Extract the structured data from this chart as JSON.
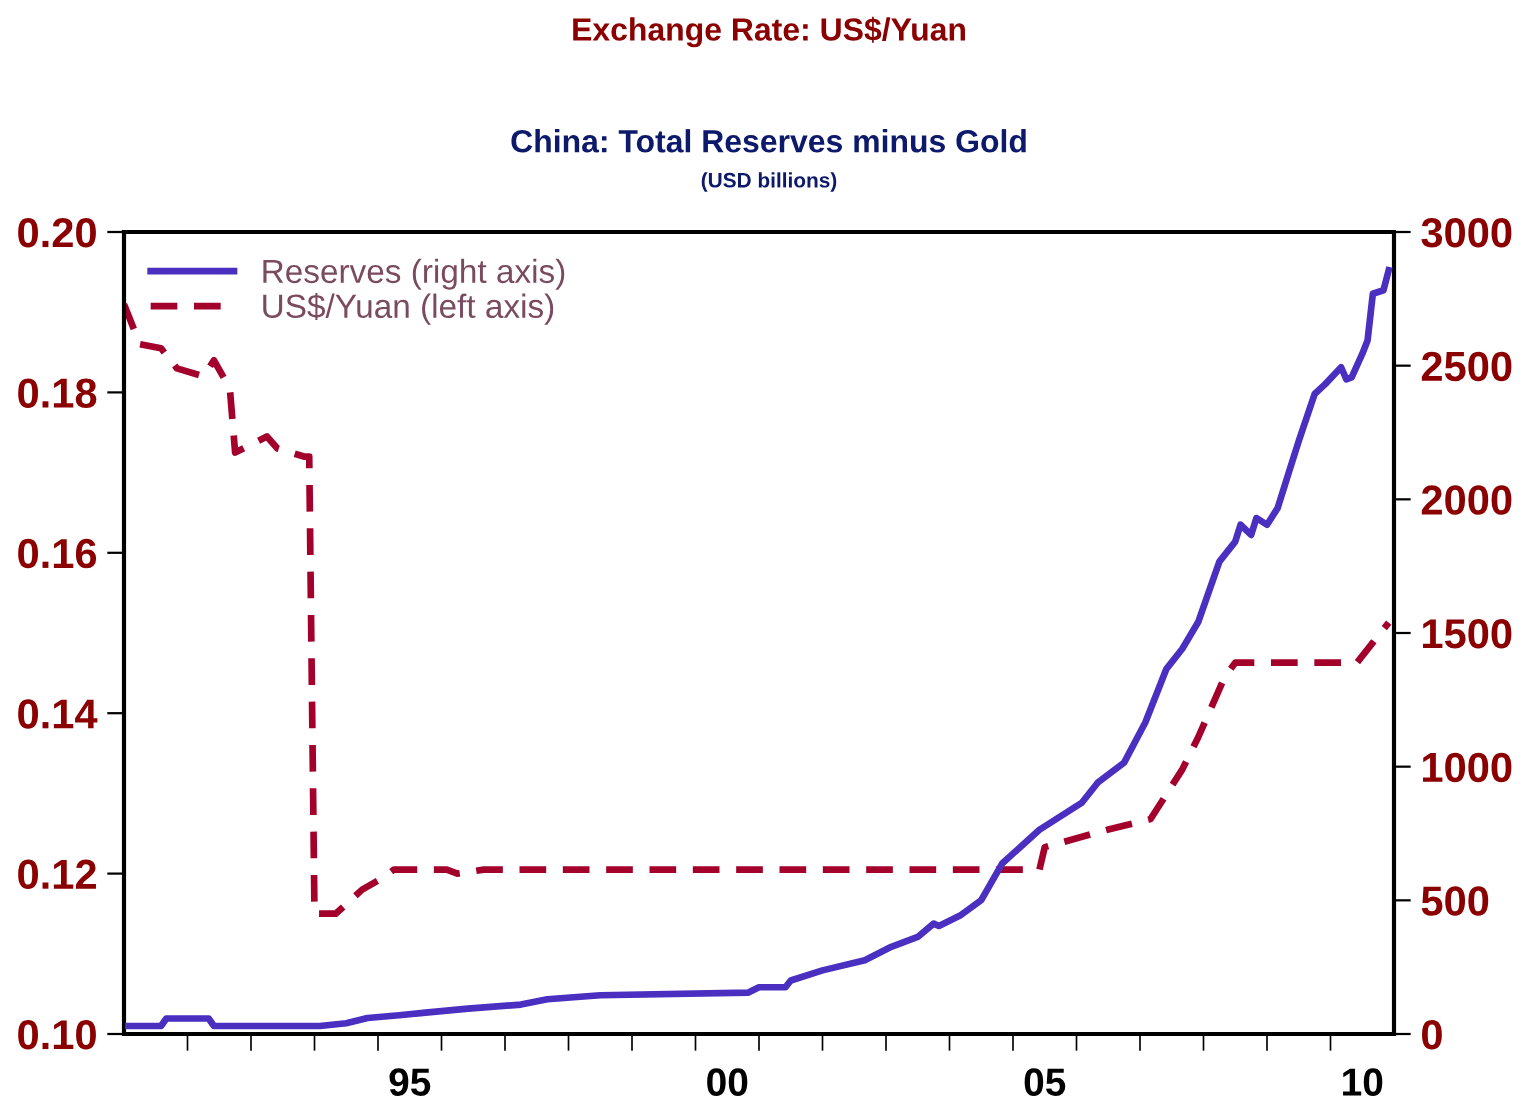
{
  "chart_data": {
    "type": "line",
    "title": "China: Total Reserves minus Gold",
    "subtitle": "(USD billions)",
    "annotations": [
      "Exchange Rate: US$/Yuan"
    ],
    "xlim": [
      "1991-01-01",
      "2011-01-01"
    ],
    "xticks": [
      {
        "value": "1992-01",
        "label": null
      },
      {
        "value": "1993-01",
        "label": null
      },
      {
        "value": "1994-01",
        "label": null
      },
      {
        "value": "1995-01",
        "label": null
      },
      {
        "value": "1996-01",
        "label": null
      },
      {
        "value": "1997-01",
        "label": null
      },
      {
        "value": "1998-01",
        "label": null
      },
      {
        "value": "1999-01",
        "label": null
      },
      {
        "value": "2000-01",
        "label": null
      },
      {
        "value": "2001-01",
        "label": null
      },
      {
        "value": "2002-01",
        "label": null
      },
      {
        "value": "2003-01",
        "label": null
      },
      {
        "value": "2004-01",
        "label": null
      },
      {
        "value": "2005-01",
        "label": null
      },
      {
        "value": "2006-01",
        "label": null
      },
      {
        "value": "2007-01",
        "label": null
      },
      {
        "value": "2008-01",
        "label": null
      },
      {
        "value": "2009-01",
        "label": null
      },
      {
        "value": "2010-01",
        "label": null
      },
      {
        "value": "1995-07",
        "label": "95"
      },
      {
        "value": "2000-07",
        "label": "00"
      },
      {
        "value": "2005-07",
        "label": "05"
      },
      {
        "value": "2010-07",
        "label": "10"
      }
    ],
    "ylim": [
      0.1,
      0.2
    ],
    "yticks": [
      {
        "value": 0.1,
        "label": "0.10"
      },
      {
        "value": 0.12,
        "label": "0.12"
      },
      {
        "value": 0.14,
        "label": "0.14"
      },
      {
        "value": 0.16,
        "label": "0.16"
      },
      {
        "value": 0.18,
        "label": "0.18"
      },
      {
        "value": 0.2,
        "label": "0.20"
      }
    ],
    "y2lim": [
      0,
      3000
    ],
    "y2ticks": [
      0,
      500,
      1000,
      1500,
      2000,
      2500,
      3000
    ],
    "legend": "top left",
    "series": [
      {
        "name": "Reserves (right axis)",
        "color": "#4a2fc0",
        "axis": "y2",
        "line_style": "solid",
        "x": [
          "1991-01",
          "1991-08",
          "1991-09",
          "1992-05",
          "1992-06",
          "1994-02",
          "1994-07",
          "1994-11",
          "1995-05",
          "1995-10",
          "1996-06",
          "1997-04",
          "1997-09",
          "1998-07",
          "2000-11",
          "2001-01",
          "2001-06",
          "2001-07",
          "2002-01",
          "2002-09",
          "2003-02",
          "2003-07",
          "2003-10",
          "2003-11",
          "2004-03",
          "2004-07",
          "2004-11",
          "2005-06",
          "2006-02",
          "2006-05",
          "2006-10",
          "2007-02",
          "2007-06",
          "2007-09",
          "2007-12",
          "2008-04",
          "2008-07",
          "2008-08",
          "2008-10",
          "2008-11",
          "2009-01",
          "2009-03",
          "2009-05",
          "2009-07",
          "2009-10",
          "2009-12",
          "2010-03",
          "2010-04",
          "2010-05",
          "2010-07",
          "2010-08",
          "2010-09",
          "2010-11",
          "2010-12"
        ],
        "values": [
          30,
          30,
          58,
          58,
          30,
          30,
          40,
          60,
          70,
          80,
          95,
          110,
          130,
          145,
          155,
          175,
          175,
          200,
          238,
          276,
          326,
          363,
          413,
          404,
          443,
          501,
          639,
          764,
          865,
          940,
          1015,
          1165,
          1366,
          1441,
          1541,
          1767,
          1842,
          1905,
          1867,
          1930,
          1905,
          1967,
          2093,
          2218,
          2394,
          2431,
          2494,
          2449,
          2456,
          2544,
          2594,
          2769,
          2782,
          2857
        ]
      },
      {
        "name": "US$/Yuan (left axis)",
        "color": "#a3002b",
        "axis": "y",
        "line_style": "dashed",
        "x": [
          "1991-01",
          "1991-04",
          "1991-08",
          "1991-11",
          "1992-04",
          "1992-06",
          "1992-09",
          "1992-10",
          "1993-01",
          "1993-04",
          "1993-06",
          "1993-11",
          "1993-12",
          "1994-01",
          "1994-05",
          "1994-10",
          "1995-02",
          "1995-04",
          "1996-02",
          "1996-04",
          "1996-09",
          "2005-06",
          "2005-07",
          "2006-07",
          "2007-03",
          "2007-09",
          "2007-12",
          "2008-05",
          "2008-07",
          "2009-03",
          "2010-06",
          "2010-09",
          "2010-12"
        ],
        "values": [
          0.191,
          0.186,
          0.1855,
          0.183,
          0.182,
          0.184,
          0.1805,
          0.1725,
          0.1735,
          0.1745,
          0.173,
          0.172,
          0.172,
          0.115,
          0.115,
          0.118,
          0.1195,
          0.1205,
          0.1205,
          0.12,
          0.1205,
          0.1205,
          0.1233,
          0.1255,
          0.1268,
          0.133,
          0.137,
          0.1445,
          0.1463,
          0.1463,
          0.1463,
          0.1488,
          0.1513
        ]
      }
    ]
  }
}
